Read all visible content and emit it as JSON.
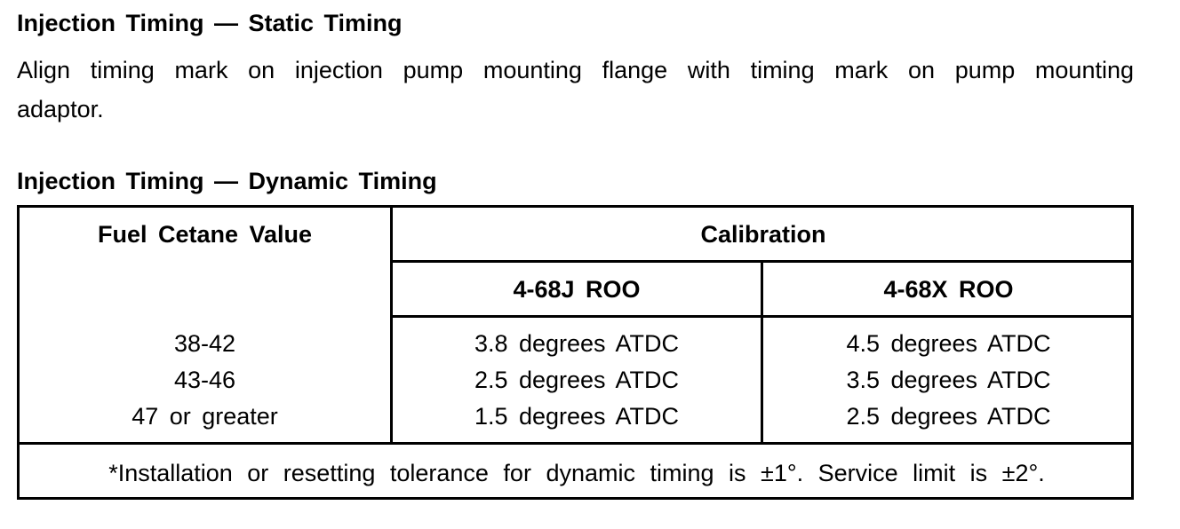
{
  "static": {
    "title": "Injection Timing — Static Timing",
    "lines": [
      "Align timing mark on injection pump mounting flange with timing mark on pump mounting",
      "adaptor."
    ]
  },
  "dynamic": {
    "title": "Injection Timing — Dynamic Timing",
    "table": {
      "header": {
        "fuel": "Fuel Cetane Value",
        "calibration": "Calibration",
        "columns": [
          "4-68J ROO",
          "4-68X ROO"
        ]
      },
      "rows": [
        [
          "38-42",
          "3.8 degrees ATDC",
          "4.5 degrees ATDC"
        ],
        [
          "43-46",
          "2.5 degrees ATDC",
          "3.5 degrees ATDC"
        ],
        [
          "47 or greater",
          "1.5 degrees ATDC",
          "2.5 degrees ATDC"
        ]
      ],
      "footnote": "*Installation or resetting tolerance for dynamic timing is ±1°. Service limit is ±2°."
    }
  }
}
